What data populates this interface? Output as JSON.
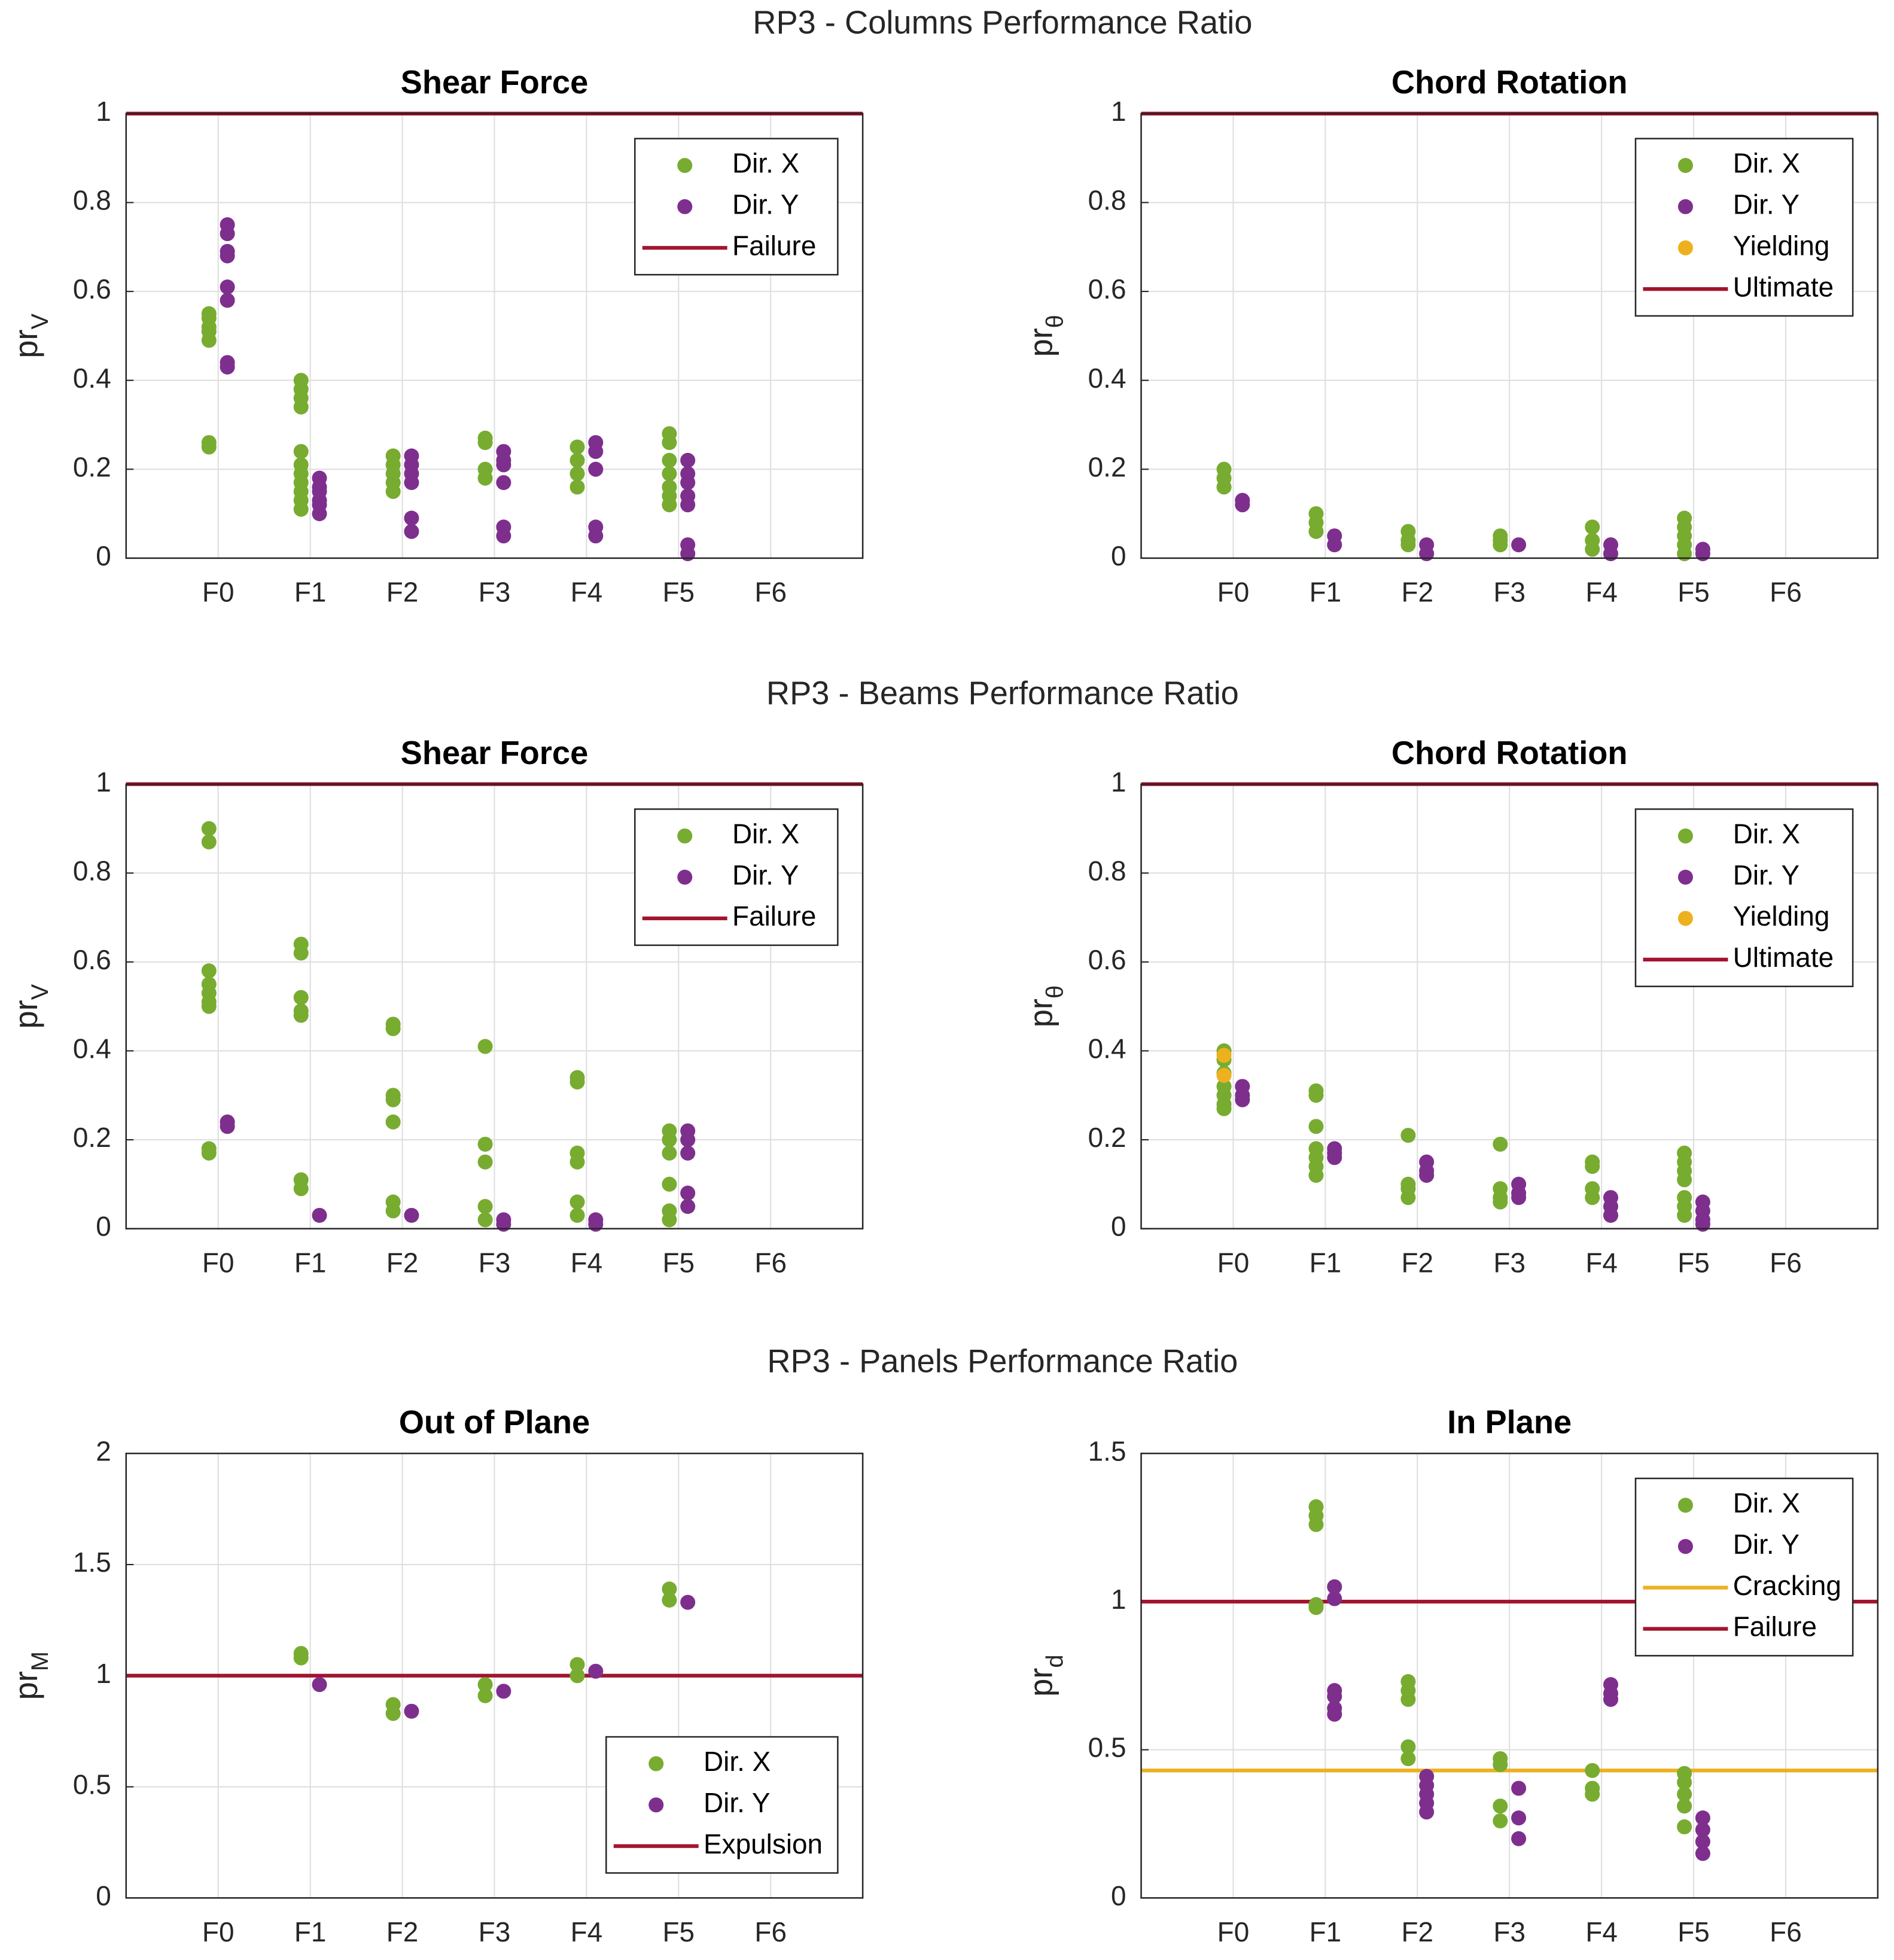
{
  "section_titles": [
    "RP3 - Columns Performance Ratio",
    "RP3 - Beams Performance Ratio",
    "RP3 - Panels Performance Ratio"
  ],
  "chart_data": [
    {
      "type": "scatter",
      "title": "Shear Force",
      "y_label": {
        "base": "pr",
        "sub": "V"
      },
      "categories": [
        "F0",
        "F1",
        "F2",
        "F3",
        "F4",
        "F5",
        "F6"
      ],
      "ylim": [
        0,
        1
      ],
      "yticks": [
        0,
        0.2,
        0.4,
        0.6,
        0.8,
        1
      ],
      "grid": true,
      "legend": "northeast",
      "series": [
        {
          "name": "Dir. X",
          "color": "#77ac30",
          "x": [
            "F0",
            "F0",
            "F0",
            "F0",
            "F0",
            "F0",
            "F0",
            "F1",
            "F1",
            "F1",
            "F1",
            "F1",
            "F1",
            "F1",
            "F1",
            "F1",
            "F1",
            "F1",
            "F2",
            "F2",
            "F2",
            "F2",
            "F2",
            "F3",
            "F3",
            "F3",
            "F3",
            "F4",
            "F4",
            "F4",
            "F4",
            "F5",
            "F5",
            "F5",
            "F5",
            "F5",
            "F5",
            "F5"
          ],
          "values": [
            0.55,
            0.54,
            0.52,
            0.51,
            0.49,
            0.26,
            0.25,
            0.4,
            0.38,
            0.36,
            0.34,
            0.24,
            0.21,
            0.19,
            0.17,
            0.15,
            0.13,
            0.11,
            0.23,
            0.21,
            0.19,
            0.17,
            0.15,
            0.27,
            0.26,
            0.2,
            0.18,
            0.25,
            0.22,
            0.19,
            0.16,
            0.28,
            0.26,
            0.22,
            0.19,
            0.16,
            0.14,
            0.12
          ]
        },
        {
          "name": "Dir. Y",
          "color": "#7e2f8e",
          "x": [
            "F0",
            "F0",
            "F0",
            "F0",
            "F0",
            "F0",
            "F0",
            "F0",
            "F1",
            "F1",
            "F1",
            "F1",
            "F1",
            "F1",
            "F2",
            "F2",
            "F2",
            "F2",
            "F2",
            "F2",
            "F3",
            "F3",
            "F3",
            "F3",
            "F3",
            "F3",
            "F4",
            "F4",
            "F4",
            "F4",
            "F4",
            "F5",
            "F5",
            "F5",
            "F5",
            "F5",
            "F5",
            "F5"
          ],
          "values": [
            0.75,
            0.73,
            0.69,
            0.68,
            0.61,
            0.58,
            0.44,
            0.43,
            0.18,
            0.16,
            0.15,
            0.13,
            0.12,
            0.1,
            0.23,
            0.21,
            0.19,
            0.17,
            0.09,
            0.06,
            0.24,
            0.22,
            0.21,
            0.17,
            0.07,
            0.05,
            0.26,
            0.24,
            0.2,
            0.07,
            0.05,
            0.22,
            0.19,
            0.17,
            0.14,
            0.12,
            0.03,
            0.01
          ]
        }
      ],
      "reference_lines": [
        {
          "name": "Failure",
          "color": "#a2142f",
          "value": 1
        }
      ]
    },
    {
      "type": "scatter",
      "title": "Chord Rotation",
      "y_label": {
        "base": "pr",
        "sub": "θ"
      },
      "categories": [
        "F0",
        "F1",
        "F2",
        "F3",
        "F4",
        "F5",
        "F6"
      ],
      "ylim": [
        0,
        1
      ],
      "yticks": [
        0,
        0.2,
        0.4,
        0.6,
        0.8,
        1
      ],
      "grid": true,
      "legend": "northeast",
      "series": [
        {
          "name": "Dir. X",
          "color": "#77ac30",
          "x": [
            "F0",
            "F0",
            "F0",
            "F1",
            "F1",
            "F1",
            "F2",
            "F2",
            "F2",
            "F3",
            "F3",
            "F3",
            "F4",
            "F4",
            "F4",
            "F5",
            "F5",
            "F5",
            "F5",
            "F5"
          ],
          "values": [
            0.2,
            0.18,
            0.16,
            0.1,
            0.08,
            0.06,
            0.06,
            0.04,
            0.03,
            0.05,
            0.04,
            0.03,
            0.07,
            0.04,
            0.02,
            0.09,
            0.07,
            0.05,
            0.03,
            0.01
          ]
        },
        {
          "name": "Dir. Y",
          "color": "#7e2f8e",
          "x": [
            "F0",
            "F0",
            "F1",
            "F1",
            "F2",
            "F2",
            "F3",
            "F4",
            "F4",
            "F5",
            "F5"
          ],
          "values": [
            0.13,
            0.12,
            0.05,
            0.03,
            0.03,
            0.01,
            0.03,
            0.03,
            0.01,
            0.02,
            0.01
          ]
        },
        {
          "name": "Yielding",
          "color": "#edb120",
          "x": [],
          "values": []
        }
      ],
      "reference_lines": [
        {
          "name": "Ultimate",
          "color": "#a2142f",
          "value": 1
        }
      ]
    },
    {
      "type": "scatter",
      "title": "Shear Force",
      "y_label": {
        "base": "pr",
        "sub": "V"
      },
      "categories": [
        "F0",
        "F1",
        "F2",
        "F3",
        "F4",
        "F5",
        "F6"
      ],
      "ylim": [
        0,
        1
      ],
      "yticks": [
        0,
        0.2,
        0.4,
        0.6,
        0.8,
        1
      ],
      "grid": true,
      "legend": "northeast",
      "series": [
        {
          "name": "Dir. X",
          "color": "#77ac30",
          "x": [
            "F0",
            "F0",
            "F0",
            "F0",
            "F0",
            "F0",
            "F0",
            "F0",
            "F0",
            "F1",
            "F1",
            "F1",
            "F1",
            "F1",
            "F1",
            "F1",
            "F2",
            "F2",
            "F2",
            "F2",
            "F2",
            "F2",
            "F2",
            "F3",
            "F3",
            "F3",
            "F3",
            "F3",
            "F4",
            "F4",
            "F4",
            "F4",
            "F4",
            "F4",
            "F5",
            "F5",
            "F5",
            "F5",
            "F5",
            "F5"
          ],
          "values": [
            0.9,
            0.87,
            0.58,
            0.55,
            0.53,
            0.51,
            0.5,
            0.18,
            0.17,
            0.64,
            0.62,
            0.52,
            0.49,
            0.48,
            0.11,
            0.09,
            0.46,
            0.45,
            0.3,
            0.29,
            0.24,
            0.06,
            0.04,
            0.41,
            0.19,
            0.15,
            0.05,
            0.02,
            0.34,
            0.33,
            0.17,
            0.15,
            0.06,
            0.03,
            0.22,
            0.2,
            0.17,
            0.1,
            0.04,
            0.02
          ]
        },
        {
          "name": "Dir. Y",
          "color": "#7e2f8e",
          "x": [
            "F0",
            "F0",
            "F1",
            "F2",
            "F3",
            "F3",
            "F4",
            "F4",
            "F5",
            "F5",
            "F5",
            "F5",
            "F5"
          ],
          "values": [
            0.24,
            0.23,
            0.03,
            0.03,
            0.02,
            0.01,
            0.02,
            0.01,
            0.22,
            0.2,
            0.17,
            0.08,
            0.05
          ]
        }
      ],
      "reference_lines": [
        {
          "name": "Failure",
          "color": "#a2142f",
          "value": 1
        }
      ]
    },
    {
      "type": "scatter",
      "title": "Chord Rotation",
      "y_label": {
        "base": "pr",
        "sub": "θ"
      },
      "categories": [
        "F0",
        "F1",
        "F2",
        "F3",
        "F4",
        "F5",
        "F6"
      ],
      "ylim": [
        0,
        1
      ],
      "yticks": [
        0,
        0.2,
        0.4,
        0.6,
        0.8,
        1
      ],
      "grid": true,
      "legend": "northeast",
      "series": [
        {
          "name": "Dir. X",
          "color": "#77ac30",
          "x": [
            "F0",
            "F0",
            "F0",
            "F0",
            "F0",
            "F0",
            "F0",
            "F1",
            "F1",
            "F1",
            "F1",
            "F1",
            "F1",
            "F1",
            "F2",
            "F2",
            "F2",
            "F2",
            "F3",
            "F3",
            "F3",
            "F3",
            "F4",
            "F4",
            "F4",
            "F4",
            "F5",
            "F5",
            "F5",
            "F5",
            "F5",
            "F5",
            "F5"
          ],
          "values": [
            0.4,
            0.38,
            0.35,
            0.32,
            0.3,
            0.28,
            0.27,
            0.31,
            0.3,
            0.23,
            0.18,
            0.16,
            0.14,
            0.12,
            0.21,
            0.1,
            0.09,
            0.07,
            0.19,
            0.09,
            0.07,
            0.06,
            0.15,
            0.14,
            0.09,
            0.07,
            0.17,
            0.15,
            0.13,
            0.11,
            0.07,
            0.05,
            0.03
          ]
        },
        {
          "name": "Dir. Y",
          "color": "#7e2f8e",
          "x": [
            "F0",
            "F0",
            "F0",
            "F1",
            "F1",
            "F1",
            "F2",
            "F2",
            "F2",
            "F3",
            "F3",
            "F3",
            "F4",
            "F4",
            "F4",
            "F5",
            "F5",
            "F5",
            "F5"
          ],
          "values": [
            0.32,
            0.3,
            0.29,
            0.18,
            0.17,
            0.16,
            0.15,
            0.13,
            0.12,
            0.1,
            0.08,
            0.07,
            0.07,
            0.05,
            0.03,
            0.06,
            0.04,
            0.02,
            0.01
          ]
        },
        {
          "name": "Yielding",
          "color": "#edb120",
          "x": [
            "F0",
            "F0"
          ],
          "values": [
            0.39,
            0.345
          ]
        }
      ],
      "reference_lines": [
        {
          "name": "Ultimate",
          "color": "#a2142f",
          "value": 1
        }
      ]
    },
    {
      "type": "scatter",
      "title": "Out of Plane",
      "y_label": {
        "base": "pr",
        "sub": "M"
      },
      "categories": [
        "F0",
        "F1",
        "F2",
        "F3",
        "F4",
        "F5",
        "F6"
      ],
      "ylim": [
        0,
        2
      ],
      "yticks": [
        0,
        0.5,
        1,
        1.5,
        2
      ],
      "grid": true,
      "legend": "southeast",
      "series": [
        {
          "name": "Dir. X",
          "color": "#77ac30",
          "x": [
            "F1",
            "F1",
            "F2",
            "F2",
            "F3",
            "F3",
            "F4",
            "F4",
            "F5",
            "F5"
          ],
          "values": [
            1.1,
            1.08,
            0.87,
            0.83,
            0.96,
            0.91,
            1.05,
            1.0,
            1.39,
            1.34
          ]
        },
        {
          "name": "Dir. Y",
          "color": "#7e2f8e",
          "x": [
            "F1",
            "F2",
            "F3",
            "F4",
            "F5"
          ],
          "values": [
            0.96,
            0.84,
            0.93,
            1.02,
            1.33
          ]
        }
      ],
      "reference_lines": [
        {
          "name": "Expulsion",
          "color": "#a2142f",
          "value": 1
        }
      ]
    },
    {
      "type": "scatter",
      "title": "In Plane",
      "y_label": {
        "base": "pr",
        "sub": "d"
      },
      "categories": [
        "F0",
        "F1",
        "F2",
        "F3",
        "F4",
        "F5",
        "F6"
      ],
      "ylim": [
        0,
        1.5
      ],
      "yticks": [
        0,
        0.5,
        1,
        1.5
      ],
      "grid": true,
      "legend": "northeast",
      "series": [
        {
          "name": "Dir. X",
          "color": "#77ac30",
          "x": [
            "F1",
            "F1",
            "F1",
            "F1",
            "F1",
            "F2",
            "F2",
            "F2",
            "F2",
            "F2",
            "F3",
            "F3",
            "F3",
            "F3",
            "F4",
            "F4",
            "F4",
            "F5",
            "F5",
            "F5",
            "F5",
            "F5"
          ],
          "values": [
            1.32,
            1.29,
            1.26,
            0.99,
            0.98,
            0.73,
            0.7,
            0.67,
            0.51,
            0.47,
            0.47,
            0.45,
            0.31,
            0.26,
            0.43,
            0.37,
            0.35,
            0.42,
            0.39,
            0.35,
            0.31,
            0.24
          ]
        },
        {
          "name": "Dir. Y",
          "color": "#7e2f8e",
          "x": [
            "F1",
            "F1",
            "F1",
            "F1",
            "F1",
            "F1",
            "F2",
            "F2",
            "F2",
            "F2",
            "F2",
            "F3",
            "F3",
            "F3",
            "F4",
            "F4",
            "F4",
            "F5",
            "F5",
            "F5",
            "F5"
          ],
          "values": [
            1.05,
            1.01,
            0.7,
            0.68,
            0.64,
            0.62,
            0.41,
            0.38,
            0.35,
            0.32,
            0.29,
            0.37,
            0.27,
            0.2,
            0.72,
            0.69,
            0.67,
            0.27,
            0.23,
            0.19,
            0.15
          ]
        }
      ],
      "reference_lines": [
        {
          "name": "Cracking",
          "color": "#edb120",
          "value": 0.43
        },
        {
          "name": "Failure",
          "color": "#a2142f",
          "value": 1
        }
      ]
    }
  ]
}
